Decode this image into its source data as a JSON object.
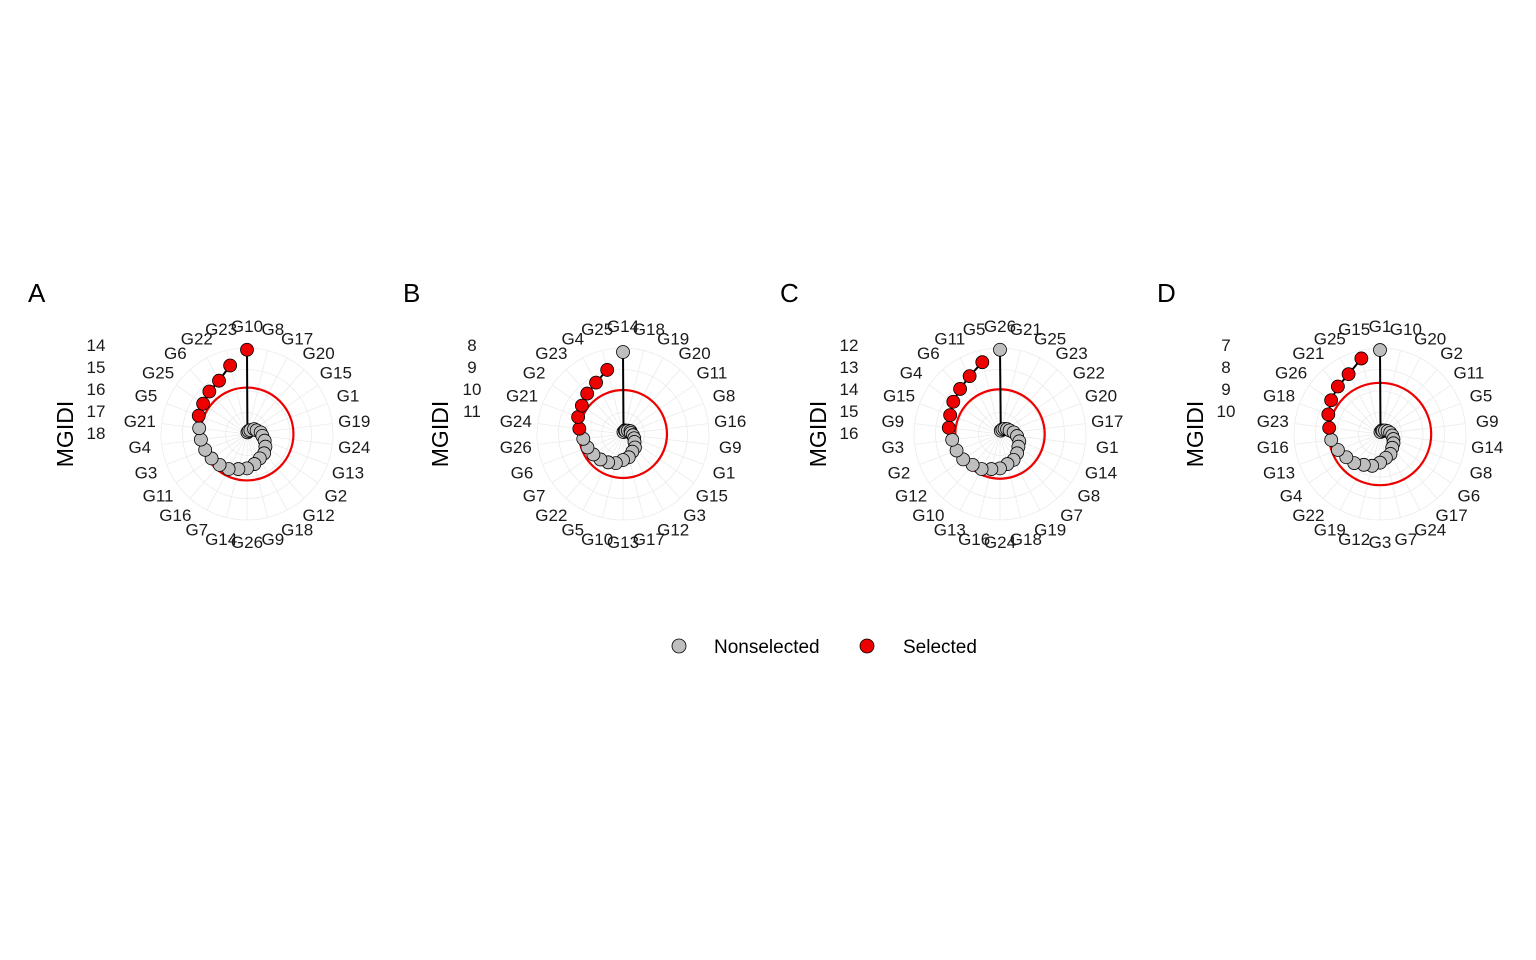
{
  "figure": {
    "legend": {
      "placement": "bottom",
      "items": [
        {
          "label": "Nonselected",
          "color": "#BEBEBE"
        },
        {
          "label": "Selected",
          "color": "#EE0000"
        }
      ]
    },
    "colors": {
      "nonselected": "#BEBEBE",
      "selected": "#EE0000",
      "cutoff": "#EE0000",
      "path": "#000000",
      "grid": "#EBEBEB"
    }
  },
  "chart_data": [
    {
      "panel": "A",
      "type": "scatter",
      "coord": "polar",
      "ylabel": "MGIDI",
      "radial_ticks": [
        "14",
        "15",
        "16",
        "17",
        "18"
      ],
      "ylim": [
        13.5,
        18.5
      ],
      "cutoff": 15.8,
      "genotypes": [
        "G10",
        "G8",
        "G17",
        "G20",
        "G15",
        "G1",
        "G19",
        "G24",
        "G13",
        "G2",
        "G12",
        "G18",
        "G9",
        "G26",
        "G14",
        "G7",
        "G16",
        "G11",
        "G3",
        "G4",
        "G21",
        "G5",
        "G25",
        "G6",
        "G22",
        "G23"
      ],
      "mgidi": [
        13.6,
        18.4,
        18.3,
        18.2,
        18.0,
        17.9,
        17.7,
        17.6,
        17.4,
        17.2,
        17.0,
        16.9,
        16.7,
        16.5,
        16.4,
        16.2,
        16.1,
        16.0,
        15.9,
        15.8,
        15.7,
        15.5,
        15.4,
        15.2,
        15.0,
        14.4
      ],
      "selected": [
        "G10",
        "G23",
        "G22",
        "G6",
        "G25",
        "G5"
      ]
    },
    {
      "panel": "B",
      "type": "scatter",
      "coord": "polar",
      "ylabel": "MGIDI",
      "radial_ticks": [
        "8",
        "9",
        "10",
        "11"
      ],
      "ylim": [
        7.5,
        11.8
      ],
      "cutoff": 9.6,
      "genotypes": [
        "G14",
        "G18",
        "G19",
        "G20",
        "G11",
        "G8",
        "G16",
        "G9",
        "G1",
        "G15",
        "G3",
        "G12",
        "G17",
        "G13",
        "G10",
        "G5",
        "G22",
        "G7",
        "G6",
        "G26",
        "G24",
        "G21",
        "G2",
        "G23",
        "G4",
        "G25"
      ],
      "mgidi": [
        7.7,
        11.7,
        11.6,
        11.6,
        11.5,
        11.4,
        11.4,
        11.3,
        11.2,
        11.1,
        10.9,
        10.8,
        10.6,
        10.5,
        10.3,
        10.2,
        10.1,
        10.0,
        9.9,
        9.8,
        9.6,
        9.4,
        9.3,
        9.1,
        8.9,
        8.5
      ],
      "selected": [
        "G25",
        "G4",
        "G23",
        "G2",
        "G21",
        "G24"
      ]
    },
    {
      "panel": "C",
      "type": "scatter",
      "coord": "polar",
      "ylabel": "MGIDI",
      "radial_ticks": [
        "12",
        "13",
        "14",
        "15",
        "16"
      ],
      "ylim": [
        11.6,
        16.6
      ],
      "cutoff": 14.0,
      "genotypes": [
        "G26",
        "G21",
        "G25",
        "G23",
        "G22",
        "G20",
        "G17",
        "G1",
        "G14",
        "G8",
        "G7",
        "G19",
        "G18",
        "G24",
        "G16",
        "G13",
        "G10",
        "G12",
        "G2",
        "G3",
        "G9",
        "G15",
        "G4",
        "G6",
        "G11",
        "G5"
      ],
      "mgidi": [
        11.7,
        16.4,
        16.3,
        16.2,
        16.1,
        16.0,
        15.8,
        15.6,
        15.4,
        15.3,
        15.1,
        14.9,
        14.8,
        14.6,
        14.5,
        14.3,
        14.2,
        14.0,
        13.9,
        13.8,
        13.6,
        13.5,
        13.3,
        13.1,
        12.8,
        12.3
      ],
      "selected": [
        "G5",
        "G11",
        "G6",
        "G4",
        "G15",
        "G9"
      ]
    },
    {
      "panel": "D",
      "type": "scatter",
      "coord": "polar",
      "ylabel": "MGIDI",
      "radial_ticks": [
        "7",
        "8",
        "9",
        "10"
      ],
      "ylim": [
        6.5,
        10.7
      ],
      "cutoff": 8.2,
      "genotypes": [
        "G1",
        "G10",
        "G20",
        "G2",
        "G11",
        "G5",
        "G9",
        "G14",
        "G8",
        "G6",
        "G17",
        "G24",
        "G7",
        "G3",
        "G12",
        "G19",
        "G22",
        "G4",
        "G13",
        "G16",
        "G23",
        "G18",
        "G26",
        "G21",
        "G25",
        "G15"
      ],
      "mgidi": [
        6.6,
        10.6,
        10.5,
        10.5,
        10.4,
        10.3,
        10.2,
        10.1,
        10.0,
        9.9,
        9.8,
        9.6,
        9.5,
        9.3,
        9.1,
        9.0,
        8.8,
        8.7,
        8.5,
        8.3,
        8.2,
        8.0,
        7.8,
        7.6,
        7.4,
        6.9
      ],
      "selected": [
        "G15",
        "G25",
        "G21",
        "G26",
        "G18",
        "G23"
      ]
    }
  ]
}
